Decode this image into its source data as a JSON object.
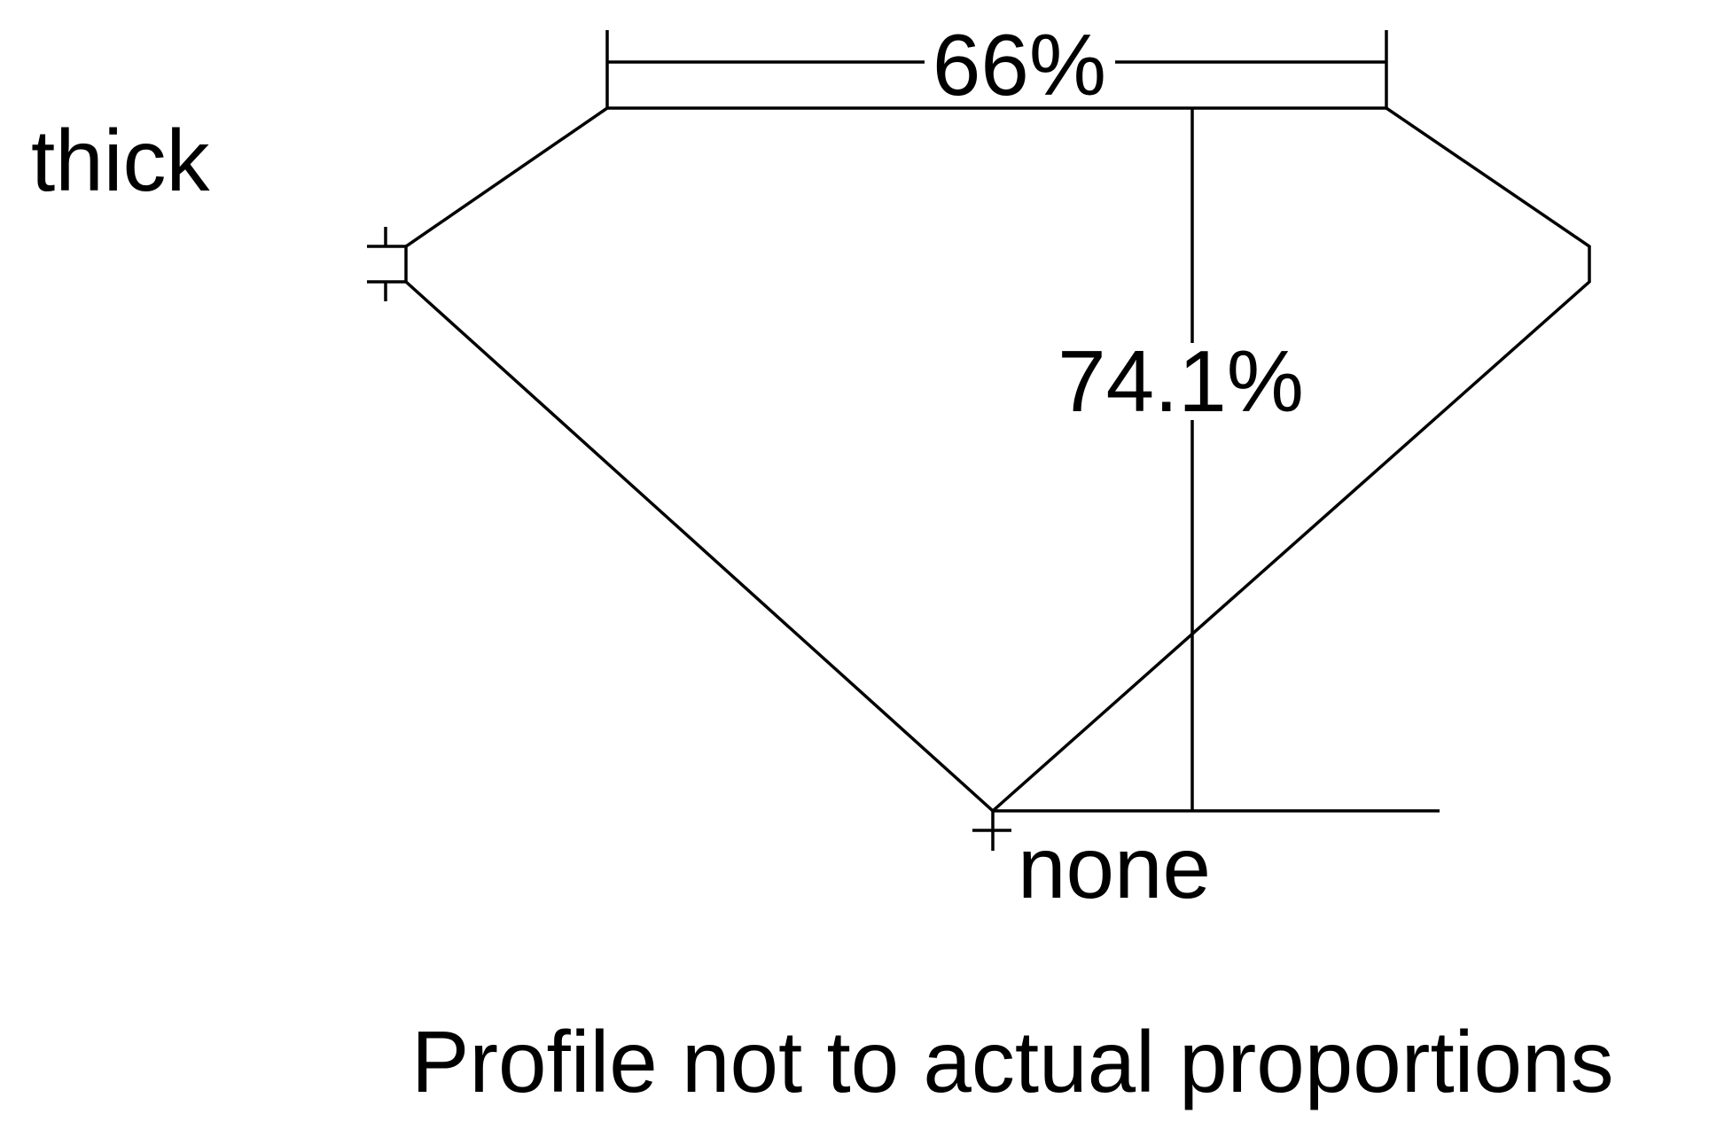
{
  "labels": {
    "crown_height": "thick",
    "table_percent": "66%",
    "depth_percent": "74.1%",
    "culet": "none",
    "caption": "Profile not to actual proportions"
  },
  "colors": {
    "stroke": "#000000",
    "background": "#ffffff"
  }
}
